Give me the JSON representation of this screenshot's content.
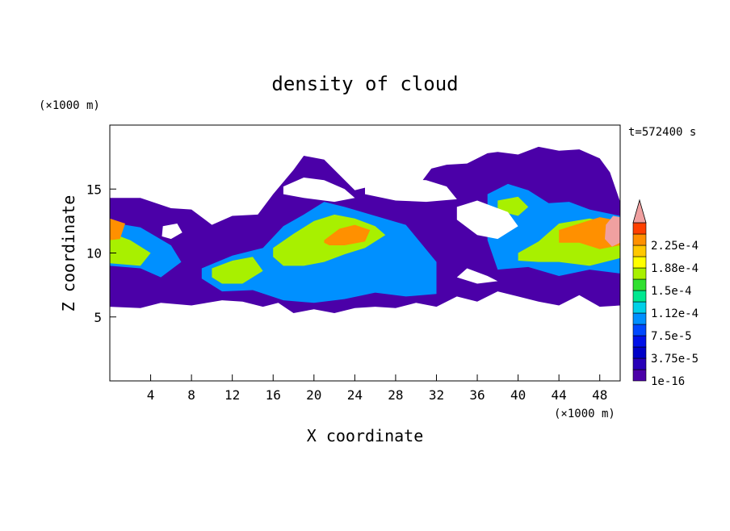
{
  "chart_data": {
    "type": "heatmap",
    "title": "density of cloud",
    "xlabel": "X coordinate",
    "ylabel": "Z coordinate",
    "x_unit": "(×1000 m)",
    "y_unit": "(×1000 m)",
    "time_label": "t=572400 s",
    "xlim": [
      0,
      50
    ],
    "ylim": [
      0,
      20
    ],
    "x_ticks": [
      4,
      8,
      12,
      16,
      20,
      24,
      28,
      32,
      36,
      40,
      44,
      48
    ],
    "y_ticks": [
      5,
      10,
      15
    ],
    "colorbar": {
      "levels": [
        "1e-16",
        "1.875e-5",
        "3.75e-5",
        "5.625e-5",
        "7.5e-5",
        "9.375e-5",
        "1.12e-4",
        "1.31e-4",
        "1.5e-4",
        "1.69e-4",
        "1.88e-4",
        "2.06e-4",
        "2.25e-4",
        "2.44e-4"
      ],
      "labels": [
        "1e-16",
        "3.75e-5",
        "7.5e-5",
        "1.12e-4",
        "1.5e-4",
        "1.88e-4",
        "2.25e-4"
      ],
      "colors": [
        "#4b00a8",
        "#2800b8",
        "#0000c8",
        "#0010e8",
        "#0048ff",
        "#0090ff",
        "#00d0e8",
        "#00e890",
        "#30e030",
        "#a8f000",
        "#ffff00",
        "#ffc800",
        "#ff9000",
        "#ff4000",
        "#f0a0a0"
      ],
      "extend": "max"
    },
    "regions": [
      {
        "level": 0,
        "x": [
          0.0,
          3,
          6,
          8,
          10,
          12,
          14.5,
          16,
          18,
          19,
          21,
          24,
          27,
          30,
          31.5,
          33,
          35,
          37,
          38,
          40,
          42,
          44,
          46,
          48,
          49,
          50,
          50,
          48,
          46,
          44,
          42,
          40,
          38,
          36,
          34,
          32,
          30,
          28,
          26,
          24,
          22,
          20,
          18,
          16.5,
          15,
          13,
          11,
          8,
          5,
          3,
          0
        ],
        "y": [
          14.3,
          14.3,
          13.5,
          13.4,
          12.2,
          12.9,
          13.0,
          14.6,
          16.5,
          17.6,
          17.3,
          14.9,
          15.5,
          15.0,
          16.6,
          16.9,
          17.0,
          17.8,
          17.9,
          17.7,
          18.3,
          18.0,
          18.1,
          17.4,
          16.3,
          14.0,
          5.9,
          5.8,
          6.7,
          5.9,
          6.2,
          6.6,
          7.0,
          6.2,
          6.6,
          5.8,
          6.1,
          5.7,
          5.8,
          5.7,
          5.3,
          5.6,
          5.3,
          6.1,
          5.8,
          6.2,
          6.3,
          5.9,
          6.1,
          5.7,
          5.8
        ]
      },
      {
        "level": 5,
        "x": [
          0,
          3,
          6,
          7,
          5,
          3,
          0
        ],
        "y": [
          12.4,
          12.0,
          10.6,
          9.3,
          8.1,
          8.8,
          9.0
        ]
      },
      {
        "level": 5,
        "x": [
          9,
          12,
          15,
          17,
          19,
          21,
          23,
          26,
          29,
          32,
          32,
          29,
          26,
          23,
          20,
          17,
          14,
          11,
          9
        ],
        "y": [
          8.8,
          9.8,
          10.4,
          12.1,
          13.0,
          14.0,
          13.6,
          12.9,
          12.2,
          9.3,
          6.8,
          6.6,
          6.9,
          6.4,
          6.1,
          6.3,
          7.1,
          7.0,
          8.0
        ]
      },
      {
        "level": 5,
        "x": [
          37,
          39,
          41,
          43,
          45,
          47,
          50,
          50,
          47,
          44,
          41,
          38,
          37
        ],
        "y": [
          14.6,
          15.4,
          14.9,
          13.9,
          14.0,
          13.4,
          12.9,
          8.4,
          8.7,
          8.2,
          8.9,
          8.7,
          11.0
        ]
      },
      {
        "level": 9,
        "x": [
          0,
          2,
          4,
          3,
          0
        ],
        "y": [
          11.6,
          11.0,
          10.0,
          9.0,
          9.2
        ]
      },
      {
        "level": 9,
        "x": [
          10,
          12,
          14,
          15,
          13,
          11,
          10
        ],
        "y": [
          8.8,
          9.4,
          9.7,
          8.6,
          7.6,
          7.6,
          8.1
        ]
      },
      {
        "level": 9,
        "x": [
          16,
          18,
          20,
          22,
          24,
          26,
          27,
          25,
          23,
          21,
          19,
          17,
          16
        ],
        "y": [
          10.4,
          11.5,
          12.5,
          13.0,
          12.7,
          12.1,
          11.4,
          10.4,
          9.9,
          9.3,
          9.0,
          9.0,
          9.7
        ]
      },
      {
        "level": 9,
        "x": [
          38,
          40,
          41,
          40,
          38
        ],
        "y": [
          14.1,
          14.4,
          13.6,
          12.9,
          13.3
        ]
      },
      {
        "level": 9,
        "x": [
          40,
          42,
          44,
          47,
          50,
          50,
          47,
          44,
          42,
          40
        ],
        "y": [
          10.0,
          10.9,
          12.3,
          12.7,
          12.2,
          9.6,
          9.0,
          9.3,
          9.3,
          9.4
        ]
      },
      {
        "level": 12,
        "x": [
          0,
          1.5,
          1,
          0
        ],
        "y": [
          12.7,
          12.3,
          11.1,
          11.0
        ]
      },
      {
        "level": 12,
        "x": [
          21,
          22.5,
          24,
          25.5,
          25,
          23,
          21.5,
          21
        ],
        "y": [
          11.0,
          11.9,
          12.2,
          11.8,
          10.9,
          10.6,
          10.6,
          10.8
        ]
      },
      {
        "level": 12,
        "x": [
          44,
          46,
          48,
          50,
          50,
          48,
          46,
          44
        ],
        "y": [
          11.8,
          12.3,
          12.8,
          12.5,
          10.6,
          10.3,
          10.8,
          10.8
        ]
      },
      {
        "level": 14,
        "x": [
          48.6,
          49.3,
          50,
          50,
          49.2,
          48.5
        ],
        "y": [
          12.2,
          12.9,
          12.8,
          10.8,
          10.5,
          11.1
        ]
      }
    ],
    "holes": [
      {
        "x": [
          17,
          19,
          21,
          23,
          24,
          22,
          19,
          17
        ],
        "y": [
          15.2,
          15.9,
          15.7,
          15.0,
          14.3,
          14.0,
          14.3,
          14.6
        ]
      },
      {
        "x": [
          25,
          28,
          31,
          33,
          34,
          31,
          28,
          25
        ],
        "y": [
          15.6,
          15.8,
          15.7,
          15.2,
          14.2,
          14.0,
          14.1,
          14.6
        ]
      },
      {
        "x": [
          34,
          36,
          39,
          40,
          38,
          36,
          34
        ],
        "y": [
          13.6,
          14.1,
          13.2,
          12.1,
          11.1,
          11.4,
          12.6
        ]
      },
      {
        "x": [
          5.2,
          6.6,
          7.1,
          6.0,
          5.1
        ],
        "y": [
          12.1,
          12.3,
          11.6,
          11.1,
          11.3
        ]
      },
      {
        "x": [
          35,
          37,
          38,
          36,
          34
        ],
        "y": [
          8.8,
          8.2,
          7.8,
          7.6,
          8.1
        ]
      }
    ]
  }
}
